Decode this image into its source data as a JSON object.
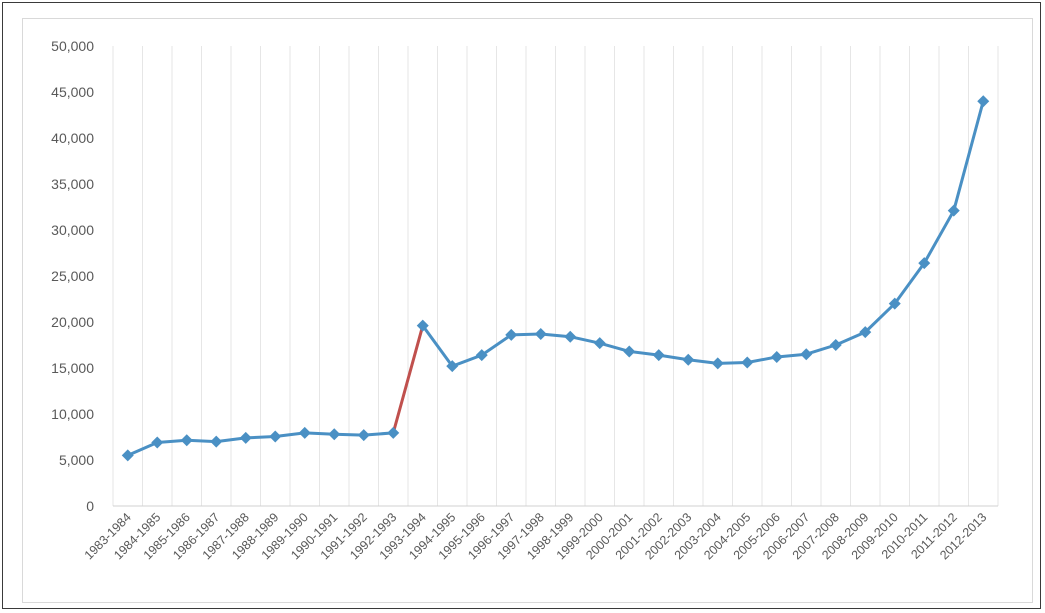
{
  "chart_data": {
    "type": "line",
    "title": "",
    "xlabel": "",
    "ylabel": "",
    "ylim": [
      0,
      50000
    ],
    "yticks": [
      0,
      5000,
      10000,
      15000,
      20000,
      25000,
      30000,
      35000,
      40000,
      45000,
      50000
    ],
    "ytick_labels": [
      "0",
      "5,000",
      "10,000",
      "15,000",
      "20,000",
      "25,000",
      "30,000",
      "35,000",
      "40,000",
      "45,000",
      "50,000"
    ],
    "grid": "vertical",
    "legend": "none",
    "categories": [
      "1983-1984",
      "1984-1985",
      "1985-1986",
      "1986-1987",
      "1987-1988",
      "1988-1989",
      "1989-1990",
      "1990-1991",
      "1991-1992",
      "1992-1993",
      "1993-1994",
      "1994-1995",
      "1995-1996",
      "1996-1997",
      "1997-1998",
      "1998-1999",
      "1999-2000",
      "2000-2001",
      "2001-2002",
      "2002-2003",
      "2003-2004",
      "2004-2005",
      "2005-2006",
      "2006-2007",
      "2007-2008",
      "2008-2009",
      "2009-2010",
      "2010-2011",
      "2011-2012",
      "2012-2013"
    ],
    "series": [
      {
        "values": [
          5500,
          6900,
          7150,
          7000,
          7400,
          7550,
          7950,
          7800,
          7700,
          7950,
          19600,
          15200,
          16400,
          18600,
          18700,
          18400,
          17700,
          16800,
          16400,
          15900,
          15500,
          15600,
          16200,
          16500,
          17500,
          18900,
          22000,
          26400,
          32100,
          44000
        ],
        "color": "#4a90c4",
        "marker": "diamond",
        "highlight_segment": {
          "from": "1992-1993",
          "to": "1993-1994",
          "color": "#c0504d"
        }
      }
    ]
  }
}
